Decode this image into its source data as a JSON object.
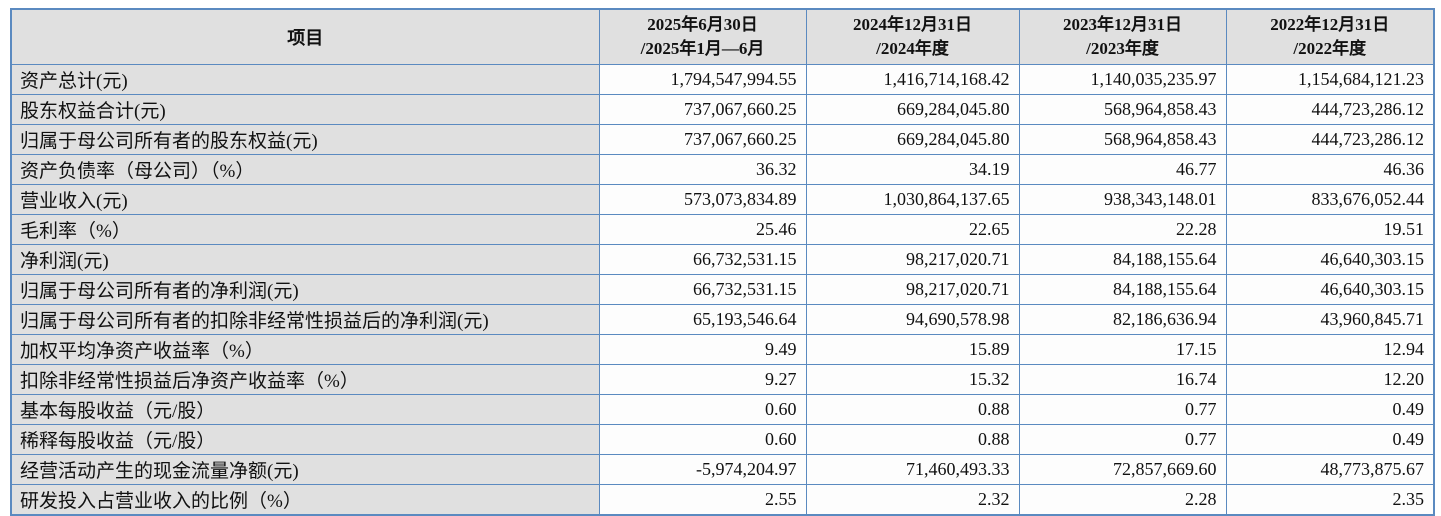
{
  "colors": {
    "border": "#5b8ac0",
    "header_bg": "#e0e0e0",
    "value_bg": "#fdfdfd",
    "text": "#111111"
  },
  "table": {
    "header": {
      "item_label": "项目",
      "period_columns": [
        {
          "line1": "2025年6月30日",
          "line2": "/2025年1月—6月"
        },
        {
          "line1": "2024年12月31日",
          "line2": "/2024年度"
        },
        {
          "line1": "2023年12月31日",
          "line2": "/2023年度"
        },
        {
          "line1": "2022年12月31日",
          "line2": "/2022年度"
        }
      ]
    },
    "rows": [
      {
        "label": "资产总计(元)",
        "values": [
          "1,794,547,994.55",
          "1,416,714,168.42",
          "1,140,035,235.97",
          "1,154,684,121.23"
        ]
      },
      {
        "label": "股东权益合计(元)",
        "values": [
          "737,067,660.25",
          "669,284,045.80",
          "568,964,858.43",
          "444,723,286.12"
        ]
      },
      {
        "label": "归属于母公司所有者的股东权益(元)",
        "values": [
          "737,067,660.25",
          "669,284,045.80",
          "568,964,858.43",
          "444,723,286.12"
        ]
      },
      {
        "label": "资产负债率（母公司）（%）",
        "values": [
          "36.32",
          "34.19",
          "46.77",
          "46.36"
        ]
      },
      {
        "label": "营业收入(元)",
        "values": [
          "573,073,834.89",
          "1,030,864,137.65",
          "938,343,148.01",
          "833,676,052.44"
        ]
      },
      {
        "label": "毛利率（%）",
        "values": [
          "25.46",
          "22.65",
          "22.28",
          "19.51"
        ]
      },
      {
        "label": "净利润(元)",
        "values": [
          "66,732,531.15",
          "98,217,020.71",
          "84,188,155.64",
          "46,640,303.15"
        ]
      },
      {
        "label": "归属于母公司所有者的净利润(元)",
        "values": [
          "66,732,531.15",
          "98,217,020.71",
          "84,188,155.64",
          "46,640,303.15"
        ]
      },
      {
        "label": "归属于母公司所有者的扣除非经常性损益后的净利润(元)",
        "values": [
          "65,193,546.64",
          "94,690,578.98",
          "82,186,636.94",
          "43,960,845.71"
        ]
      },
      {
        "label": "加权平均净资产收益率（%）",
        "values": [
          "9.49",
          "15.89",
          "17.15",
          "12.94"
        ]
      },
      {
        "label": "扣除非经常性损益后净资产收益率（%）",
        "values": [
          "9.27",
          "15.32",
          "16.74",
          "12.20"
        ]
      },
      {
        "label": "基本每股收益（元/股）",
        "values": [
          "0.60",
          "0.88",
          "0.77",
          "0.49"
        ]
      },
      {
        "label": "稀释每股收益（元/股）",
        "values": [
          "0.60",
          "0.88",
          "0.77",
          "0.49"
        ]
      },
      {
        "label": "经营活动产生的现金流量净额(元)",
        "values": [
          "-5,974,204.97",
          "71,460,493.33",
          "72,857,669.60",
          "48,773,875.67"
        ]
      },
      {
        "label": "研发投入占营业收入的比例（%）",
        "values": [
          "2.55",
          "2.32",
          "2.28",
          "2.35"
        ]
      }
    ]
  }
}
